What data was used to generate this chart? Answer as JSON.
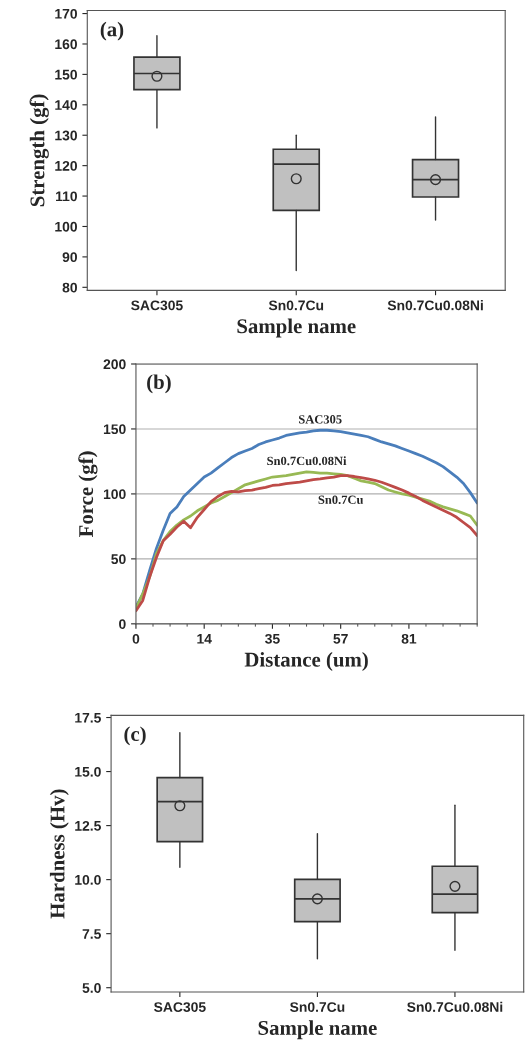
{
  "chart_data": [
    {
      "type": "box",
      "annotations": [
        "(a)"
      ],
      "xlabel": "Sample name",
      "ylabel": "Strength (gf)",
      "categories": [
        "SAC305",
        "Sn0.7Cu",
        "Sn0.7Cu0.08Ni"
      ],
      "series": [
        {
          "color": "#c0c0c0",
          "boxes": [
            {
              "low": 132.4,
              "q1": 145.0,
              "median": 150.3,
              "q3": 155.7,
              "high": 162.7,
              "mean": 149.4
            },
            {
              "low": 85.5,
              "q1": 105.3,
              "median": 120.5,
              "q3": 125.4,
              "high": 130.0,
              "mean": 115.7
            },
            {
              "low": 102.1,
              "q1": 109.7,
              "median": 115.4,
              "q3": 122.0,
              "high": 136.0,
              "mean": 115.4
            }
          ]
        }
      ],
      "ylim": [
        79,
        171
      ],
      "yticks": [
        80,
        90,
        100,
        110,
        120,
        130,
        140,
        150,
        160,
        170
      ],
      "grid": false
    },
    {
      "type": "line",
      "annotations": [
        "(b)"
      ],
      "xlabel": "Distance (um)",
      "ylabel": "Force (gf)",
      "categories": [
        "0",
        null,
        null,
        null,
        null,
        null,
        null,
        null,
        null,
        null,
        "14",
        null,
        null,
        null,
        null,
        null,
        null,
        null,
        null,
        null,
        "35",
        null,
        null,
        null,
        null,
        null,
        null,
        null,
        null,
        null,
        "57",
        null,
        null,
        null,
        null,
        null,
        null,
        null,
        null,
        null,
        "81",
        null,
        null,
        null,
        null,
        null,
        null,
        null,
        null,
        null,
        null
      ],
      "ylim": [
        0,
        200
      ],
      "yticks": [
        0,
        50,
        100,
        150,
        200
      ],
      "grid": "y",
      "series": [
        {
          "name": "SAC305",
          "color": "#4a7ebb",
          "values": [
            13,
            23,
            41,
            58,
            72,
            85,
            90,
            98,
            103,
            108,
            113,
            116,
            120,
            124,
            128,
            131,
            133,
            135,
            138,
            140,
            141.5,
            143,
            145,
            146,
            147,
            147.5,
            148.5,
            149,
            149,
            148.5,
            148,
            147,
            146,
            145,
            144,
            142,
            140,
            138.5,
            137,
            135,
            133,
            131,
            129,
            126.5,
            124,
            121,
            117,
            113,
            108,
            101,
            93
          ]
        },
        {
          "name": "Sn0.7Cu0.08Ni",
          "color": "#98b954",
          "values": [
            12,
            23,
            36,
            54,
            64,
            71,
            76,
            80,
            83,
            87,
            90,
            93,
            95,
            98,
            101,
            104,
            107,
            108.5,
            110,
            111.5,
            113,
            113.5,
            114,
            115,
            116,
            117,
            116.5,
            116,
            116,
            115.5,
            115,
            114,
            112,
            110,
            109,
            108,
            105.5,
            103,
            101.5,
            100,
            99,
            97.5,
            96,
            94.5,
            92,
            90,
            88.5,
            87,
            85,
            83,
            76
          ]
        },
        {
          "name": "Sn0.7Cu",
          "color": "#be4b48",
          "values": [
            10,
            18,
            36,
            51,
            64,
            69,
            74.5,
            79,
            74,
            82,
            88,
            94,
            98,
            101,
            102,
            101.5,
            102.5,
            103,
            104,
            105,
            106.5,
            107,
            108,
            108.5,
            109,
            110,
            111,
            111.5,
            112.4,
            113,
            114,
            114,
            113.4,
            112.5,
            111.6,
            110.5,
            109,
            107,
            105,
            103,
            100.6,
            98,
            95,
            92.5,
            90,
            87.5,
            85,
            82,
            78,
            74,
            68
          ]
        }
      ]
    },
    {
      "type": "box",
      "annotations": [
        "(c)"
      ],
      "xlabel": "Sample name",
      "ylabel": "Hardness (Hv)",
      "categories": [
        "SAC305",
        "Sn0.7Cu",
        "Sn0.7Cu0.08Ni"
      ],
      "series": [
        {
          "color": "#c0c0c0",
          "boxes": [
            {
              "low": 10.57,
              "q1": 11.76,
              "median": 13.61,
              "q3": 14.72,
              "high": 16.8,
              "mean": 13.42
            },
            {
              "low": 6.34,
              "q1": 8.06,
              "median": 9.11,
              "q3": 10.01,
              "high": 12.12,
              "mean": 9.11
            },
            {
              "low": 6.73,
              "q1": 8.47,
              "median": 9.33,
              "q3": 10.62,
              "high": 13.44,
              "mean": 9.69
            }
          ]
        }
      ],
      "ylim": [
        4.8,
        17.6
      ],
      "yticks": [
        {
          "value": 5,
          "label": "5.0"
        },
        7.5,
        {
          "value": 10,
          "label": "10.0"
        },
        12.5,
        {
          "value": 15,
          "label": "15.0"
        },
        17.5
      ],
      "grid": false
    }
  ]
}
